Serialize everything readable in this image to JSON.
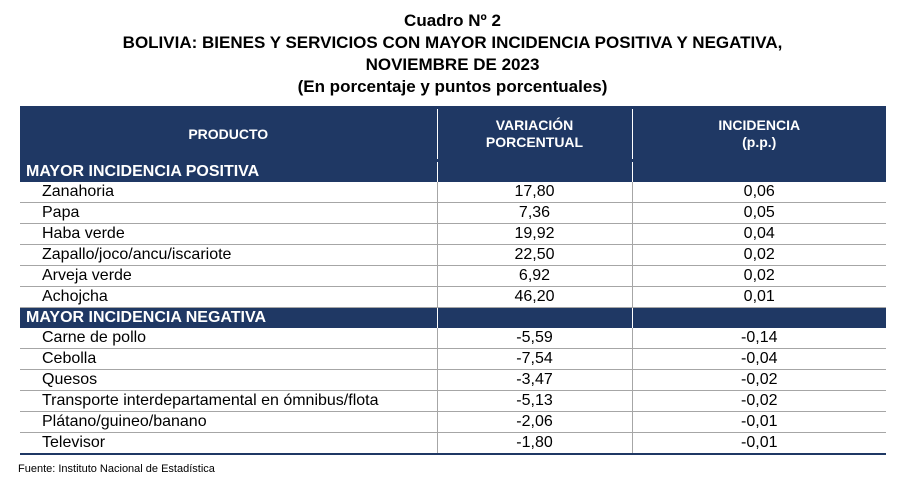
{
  "title": {
    "line1": "Cuadro Nº 2",
    "line2": "BOLIVIA: BIENES Y SERVICIOS CON MAYOR INCIDENCIA POSITIVA Y NEGATIVA,",
    "line3": "NOVIEMBRE DE 2023",
    "line4": "(En porcentaje y puntos porcentuales)"
  },
  "table": {
    "headers": {
      "product": "PRODUCTO",
      "variation_line1": "VARIACIÓN",
      "variation_line2": "PORCENTUAL",
      "incidence_line1": "INCIDENCIA",
      "incidence_line2": "(p.p.)"
    },
    "positive": {
      "label": "MAYOR INCIDENCIA POSITIVA",
      "rows": [
        {
          "product": "Zanahoria",
          "variation": "17,80",
          "incidence": "0,06"
        },
        {
          "product": "Papa",
          "variation": "7,36",
          "incidence": "0,05"
        },
        {
          "product": "Haba verde",
          "variation": "19,92",
          "incidence": "0,04"
        },
        {
          "product": "Zapallo/joco/ancu/iscariote",
          "variation": "22,50",
          "incidence": "0,02"
        },
        {
          "product": "Arveja verde",
          "variation": "6,92",
          "incidence": "0,02"
        },
        {
          "product": "Achojcha",
          "variation": "46,20",
          "incidence": "0,01"
        }
      ]
    },
    "negative": {
      "label": "MAYOR INCIDENCIA NEGATIVA",
      "rows": [
        {
          "product": "Carne de pollo",
          "variation": "-5,59",
          "incidence": "-0,14"
        },
        {
          "product": "Cebolla",
          "variation": "-7,54",
          "incidence": "-0,04"
        },
        {
          "product": "Quesos",
          "variation": "-3,47",
          "incidence": "-0,02"
        },
        {
          "product": "Transporte interdepartamental en ómnibus/flota",
          "variation": "-5,13",
          "incidence": "-0,02"
        },
        {
          "product": "Plátano/guineo/banano",
          "variation": "-2,06",
          "incidence": "-0,01"
        },
        {
          "product": "Televisor",
          "variation": "-1,80",
          "incidence": "-0,01"
        }
      ]
    }
  },
  "source": "Fuente: Instituto Nacional de Estadística",
  "colors": {
    "header_background": "#1f3864",
    "header_text": "#ffffff"
  }
}
